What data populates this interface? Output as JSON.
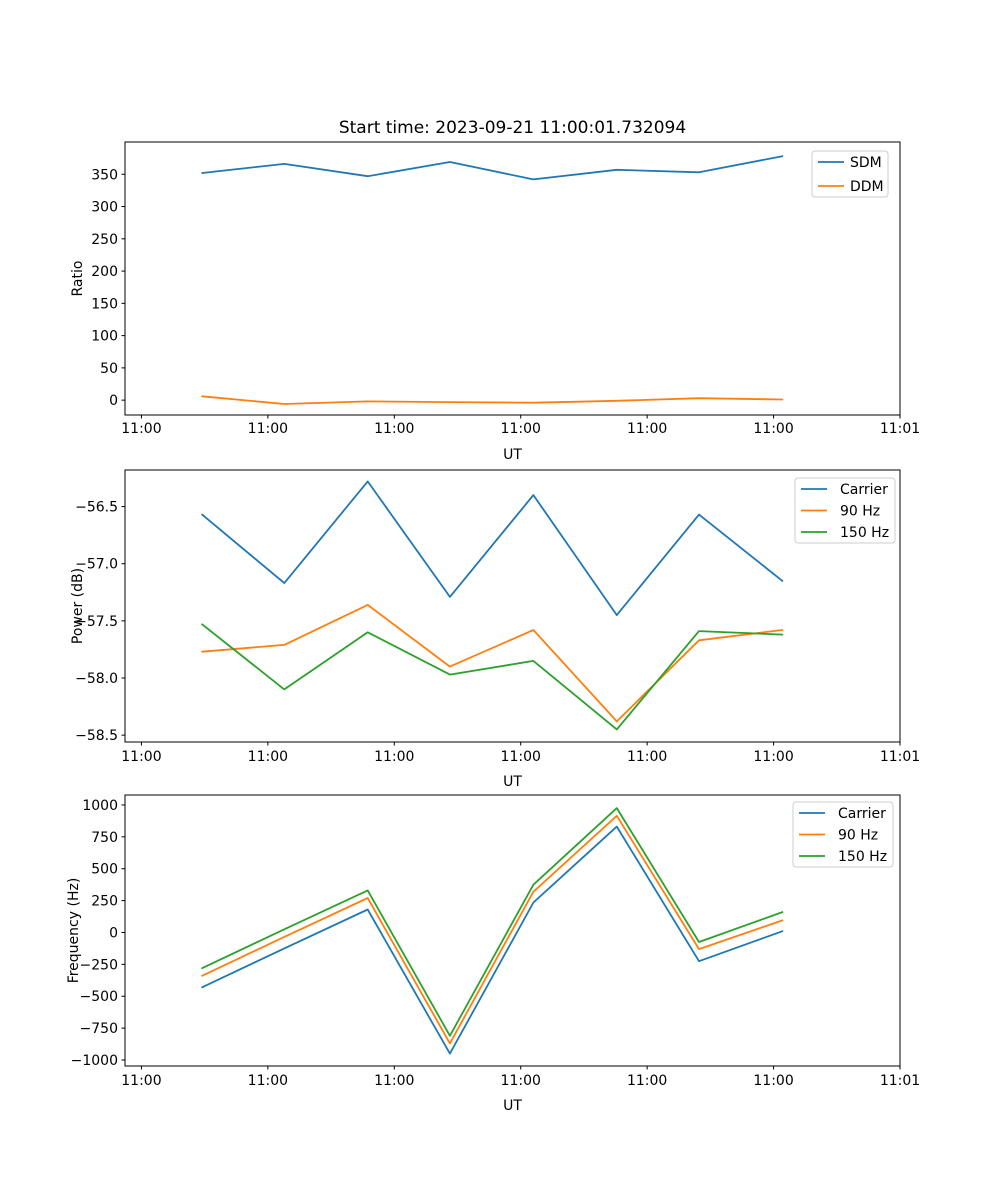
{
  "figure": {
    "background": "#ffffff",
    "title": "Start time: 2023-09-21 11:00:01.732094"
  },
  "palette": {
    "blue": "#1f77b4",
    "orange": "#ff7f0e",
    "green": "#2ca02c",
    "legend_border": "#cccccc",
    "axis": "#000000"
  },
  "chart_data": [
    {
      "type": "line",
      "name": "ratio",
      "title": "Start time: 2023-09-21 11:00:01.732094",
      "xlabel": "UT",
      "ylabel": "Ratio",
      "x_seconds": [
        4.8,
        11.3,
        17.9,
        24.4,
        31.0,
        37.6,
        44.1,
        50.7
      ],
      "xlim": [
        -1.3,
        60
      ],
      "ylim": [
        -23,
        400
      ],
      "xticks": {
        "values": [
          0,
          10,
          20,
          30,
          40,
          50,
          60
        ],
        "labels": [
          "11:00",
          "11:00",
          "11:00",
          "11:00",
          "11:00",
          "11:00",
          "11:01"
        ]
      },
      "yticks": {
        "values": [
          0,
          50,
          100,
          150,
          200,
          250,
          300,
          350
        ],
        "labels": [
          "0",
          "50",
          "100",
          "150",
          "200",
          "250",
          "300",
          "350"
        ]
      },
      "grid": false,
      "legend_position": "upper right",
      "series": [
        {
          "name": "SDM",
          "color": "#1f77b4",
          "values": [
            352,
            366,
            347,
            369,
            342,
            357,
            353,
            378
          ]
        },
        {
          "name": "DDM",
          "color": "#ff7f0e",
          "values": [
            6,
            -6,
            -2,
            -3,
            -4,
            -1,
            3,
            1
          ]
        }
      ]
    },
    {
      "type": "line",
      "name": "power",
      "title": "",
      "xlabel": "UT",
      "ylabel": "Power (dB)",
      "x_seconds": [
        4.8,
        11.3,
        17.9,
        24.4,
        31.0,
        37.6,
        44.1,
        50.7
      ],
      "xlim": [
        -1.3,
        60
      ],
      "ylim": [
        -58.56,
        -56.18
      ],
      "xticks": {
        "values": [
          0,
          10,
          20,
          30,
          40,
          50,
          60
        ],
        "labels": [
          "11:00",
          "11:00",
          "11:00",
          "11:00",
          "11:00",
          "11:00",
          "11:01"
        ]
      },
      "yticks": {
        "values": [
          -56.5,
          -57.0,
          -57.5,
          -58.0,
          -58.5
        ],
        "labels": [
          "−56.5",
          "−57.0",
          "−57.5",
          "−58.0",
          "−58.5"
        ]
      },
      "grid": false,
      "legend_position": "upper right",
      "series": [
        {
          "name": "Carrier",
          "color": "#1f77b4",
          "values": [
            -56.57,
            -57.17,
            -56.28,
            -57.29,
            -56.4,
            -57.45,
            -56.57,
            -57.15
          ]
        },
        {
          "name": "90 Hz",
          "color": "#ff7f0e",
          "values": [
            -57.77,
            -57.71,
            -57.36,
            -57.9,
            -57.58,
            -58.38,
            -57.67,
            -57.58
          ]
        },
        {
          "name": "150 Hz",
          "color": "#2ca02c",
          "values": [
            -57.53,
            -58.1,
            -57.6,
            -57.97,
            -57.85,
            -58.45,
            -57.59,
            -57.62
          ]
        }
      ]
    },
    {
      "type": "line",
      "name": "frequency",
      "title": "",
      "xlabel": "UT",
      "ylabel": "Frequency (Hz)",
      "x_seconds": [
        4.8,
        11.3,
        17.9,
        24.4,
        31.0,
        37.6,
        44.1,
        50.7
      ],
      "xlim": [
        -1.3,
        60
      ],
      "ylim": [
        -1047,
        1078
      ],
      "xticks": {
        "values": [
          0,
          10,
          20,
          30,
          40,
          50,
          60
        ],
        "labels": [
          "11:00",
          "11:00",
          "11:00",
          "11:00",
          "11:00",
          "11:00",
          "11:01"
        ]
      },
      "yticks": {
        "values": [
          1000,
          750,
          500,
          250,
          0,
          -250,
          -500,
          -750,
          -1000
        ],
        "labels": [
          "1000",
          "750",
          "500",
          "250",
          "0",
          "−250",
          "−500",
          "−750",
          "−1000"
        ]
      },
      "grid": false,
      "legend_position": "upper right",
      "series": [
        {
          "name": "Carrier",
          "color": "#1f77b4",
          "values": [
            -430,
            -125,
            180,
            -950,
            235,
            830,
            -225,
            10
          ]
        },
        {
          "name": "90 Hz",
          "color": "#ff7f0e",
          "values": [
            -340,
            -35,
            270,
            -870,
            320,
            915,
            -130,
            95
          ]
        },
        {
          "name": "150 Hz",
          "color": "#2ca02c",
          "values": [
            -280,
            25,
            330,
            -810,
            375,
            975,
            -75,
            160
          ]
        }
      ]
    }
  ]
}
